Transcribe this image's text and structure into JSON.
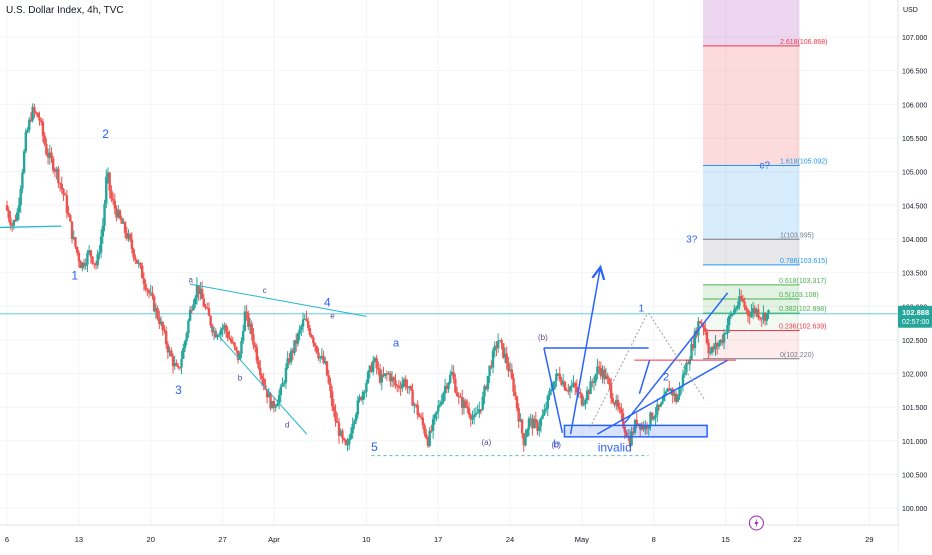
{
  "header": {
    "title": "U.S. Dollar Index, 4h, TVC"
  },
  "price_tag": {
    "price": "102.888",
    "countdown": "02:57:00"
  },
  "colors": {
    "up": "#26a69a",
    "down": "#ef5350",
    "wave": "#2962ff",
    "trend": "#22b8cf",
    "corrective": "#7e57c2",
    "fib_red": "#f23645",
    "fib_blue": "#2196f3",
    "fib_green": "#4caf50"
  },
  "chart_data": {
    "type": "candlestick",
    "title": "U.S. Dollar Index, 4h, TVC",
    "y_axis_unit": "USD",
    "ylim": [
      99.75,
      107.55
    ],
    "y_ticks": [
      "107.000",
      "106.500",
      "106.000",
      "105.500",
      "105.000",
      "104.500",
      "104.000",
      "103.500",
      "103.000",
      "102.500",
      "102.000",
      "101.500",
      "101.000",
      "100.500",
      "100.000"
    ],
    "x_ticks": [
      {
        "label": "6",
        "day": 0
      },
      {
        "label": "13",
        "day": 7
      },
      {
        "label": "20",
        "day": 14
      },
      {
        "label": "27",
        "day": 21
      },
      {
        "label": "Apr",
        "day": 26
      },
      {
        "label": "10",
        "day": 35
      },
      {
        "label": "17",
        "day": 42
      },
      {
        "label": "24",
        "day": 49
      },
      {
        "label": "May",
        "day": 56
      },
      {
        "label": "8",
        "day": 63
      },
      {
        "label": "15",
        "day": 70
      },
      {
        "label": "22",
        "day": 77
      },
      {
        "label": "29",
        "day": 84
      }
    ],
    "x_range_days": [
      0,
      86.5
    ],
    "last_day": 74.3,
    "close_price": 102.888,
    "path": [
      [
        0,
        104.5
      ],
      [
        0.7,
        104.2
      ],
      [
        1.2,
        104.4
      ],
      [
        2,
        105.5
      ],
      [
        2.6,
        105.9
      ],
      [
        3.3,
        105.8
      ],
      [
        4,
        105.3
      ],
      [
        5,
        105.0
      ],
      [
        5.8,
        104.6
      ],
      [
        6.6,
        104.0
      ],
      [
        7.4,
        103.6
      ],
      [
        8.2,
        103.8
      ],
      [
        8.9,
        103.6
      ],
      [
        9.5,
        104.2
      ],
      [
        9.9,
        105.0
      ],
      [
        10.3,
        104.6
      ],
      [
        11.1,
        104.3
      ],
      [
        12,
        104.0
      ],
      [
        13,
        103.6
      ],
      [
        14,
        103.2
      ],
      [
        15,
        102.8
      ],
      [
        16,
        102.3
      ],
      [
        16.8,
        102.0
      ],
      [
        17.4,
        102.4
      ],
      [
        18.1,
        103.0
      ],
      [
        18.7,
        103.3
      ],
      [
        19.4,
        103.0
      ],
      [
        20.4,
        102.6
      ],
      [
        21.3,
        102.7
      ],
      [
        22.2,
        102.4
      ],
      [
        22.8,
        102.2
      ],
      [
        23.3,
        102.9
      ],
      [
        24,
        102.6
      ],
      [
        24.6,
        102.2
      ],
      [
        25.3,
        101.8
      ],
      [
        26,
        101.5
      ],
      [
        26.8,
        101.7
      ],
      [
        27.6,
        102.2
      ],
      [
        28.4,
        102.5
      ],
      [
        29.1,
        102.8
      ],
      [
        29.8,
        102.6
      ],
      [
        30.5,
        102.3
      ],
      [
        31.2,
        102.1
      ],
      [
        32,
        101.4
      ],
      [
        32.8,
        101.0
      ],
      [
        33.3,
        100.85
      ],
      [
        33.8,
        101.3
      ],
      [
        34.5,
        101.6
      ],
      [
        35.2,
        101.9
      ],
      [
        35.9,
        102.2
      ],
      [
        36.6,
        101.9
      ],
      [
        37.3,
        102.0
      ],
      [
        38.1,
        101.8
      ],
      [
        38.9,
        101.9
      ],
      [
        39.7,
        101.6
      ],
      [
        40.5,
        101.3
      ],
      [
        41.2,
        101.0
      ],
      [
        42,
        101.4
      ],
      [
        42.8,
        101.8
      ],
      [
        43.5,
        102.0
      ],
      [
        44.2,
        101.6
      ],
      [
        45,
        101.5
      ],
      [
        45.7,
        101.3
      ],
      [
        46.5,
        101.6
      ],
      [
        47.2,
        102.1
      ],
      [
        48,
        102.5
      ],
      [
        48.8,
        102.2
      ],
      [
        49.5,
        101.8
      ],
      [
        50.1,
        101.3
      ],
      [
        50.5,
        101.0
      ],
      [
        51,
        101.3
      ],
      [
        51.8,
        101.2
      ],
      [
        52.5,
        101.4
      ],
      [
        53.2,
        101.8
      ],
      [
        53.9,
        102.0
      ],
      [
        54.6,
        101.8
      ],
      [
        55.4,
        101.8
      ],
      [
        56.2,
        101.6
      ],
      [
        57,
        101.8
      ],
      [
        57.8,
        102.1
      ],
      [
        58.6,
        101.9
      ],
      [
        59.3,
        101.6
      ],
      [
        60.1,
        101.3
      ],
      [
        60.8,
        101.0
      ],
      [
        61.5,
        101.3
      ],
      [
        62.3,
        101.2
      ],
      [
        63.1,
        101.4
      ],
      [
        63.9,
        101.5
      ],
      [
        64.7,
        101.8
      ],
      [
        65.4,
        101.6
      ],
      [
        66.1,
        102.0
      ],
      [
        66.9,
        102.4
      ],
      [
        67.6,
        102.8
      ],
      [
        68.1,
        102.7
      ],
      [
        68.6,
        102.3
      ],
      [
        69.2,
        102.4
      ],
      [
        69.8,
        102.5
      ],
      [
        70.5,
        102.8
      ],
      [
        71.2,
        103.0
      ],
      [
        71.7,
        103.1
      ],
      [
        72.3,
        102.9
      ],
      [
        73.1,
        102.95
      ],
      [
        73.7,
        102.85
      ],
      [
        74.3,
        102.888
      ]
    ],
    "fib_levels": [
      {
        "label": "2.618(106.868)",
        "value": 106.868,
        "color": "#f23645"
      },
      {
        "label": "1.618(105.092)",
        "value": 105.092,
        "color": "#2196f3"
      },
      {
        "label": "1(103.995)",
        "value": 103.995,
        "color": "#787b86"
      },
      {
        "label": "0.786(103.615)",
        "value": 103.615,
        "color": "#2196f3"
      },
      {
        "label": "0.618(103.317)",
        "value": 103.317,
        "color": "#4caf50"
      },
      {
        "label": "0.5(103.108)",
        "value": 103.108,
        "color": "#4caf50"
      },
      {
        "label": "0.382(102.898)",
        "value": 102.898,
        "color": "#4caf50"
      },
      {
        "label": "0.236(102.639)",
        "value": 102.639,
        "color": "#f23645"
      },
      {
        "label": "0(102.220)",
        "value": 102.22,
        "color": "#787b86"
      }
    ],
    "fib_zones": [
      {
        "from": 106.868,
        "to": 107.55,
        "color": "rgba(171,71,188,0.22)"
      },
      {
        "from": 105.092,
        "to": 106.868,
        "color": "rgba(242,54,69,0.18)"
      },
      {
        "from": 103.995,
        "to": 105.092,
        "color": "rgba(33,150,243,0.18)"
      },
      {
        "from": 103.615,
        "to": 103.995,
        "color": "rgba(120,123,134,0.18)"
      },
      {
        "from": 103.317,
        "to": 103.615,
        "color": "rgba(255,255,255,0)"
      },
      {
        "from": 102.898,
        "to": 103.317,
        "color": "rgba(76,175,80,0.16)"
      },
      {
        "from": 102.639,
        "to": 102.898,
        "color": "rgba(76,175,80,0.08)"
      },
      {
        "from": 102.22,
        "to": 102.639,
        "color": "rgba(242,54,69,0.10)"
      }
    ],
    "fib_x_days": [
      67.8,
      77.2
    ],
    "wave_labels": [
      {
        "text": "1",
        "day": 6.6,
        "price": 103.4,
        "size": 12,
        "color": "#2962ff"
      },
      {
        "text": "2",
        "day": 9.6,
        "price": 105.5,
        "size": 12,
        "color": "#2962ff"
      },
      {
        "text": "3",
        "day": 16.7,
        "price": 101.7,
        "size": 12,
        "color": "#2962ff"
      },
      {
        "text": "4",
        "day": 31.2,
        "price": 103.0,
        "size": 12,
        "color": "#2962ff"
      },
      {
        "text": "5",
        "day": 35.8,
        "price": 100.85,
        "size": 12,
        "color": "#2962ff"
      },
      {
        "text": "a",
        "day": 37.9,
        "price": 102.4,
        "size": 11,
        "color": "#2962ff"
      },
      {
        "text": "b",
        "day": 53.5,
        "price": 100.9,
        "size": 11,
        "color": "#2962ff"
      },
      {
        "text": "1",
        "day": 61.8,
        "price": 102.92,
        "size": 10,
        "color": "#2962ff"
      },
      {
        "text": "2",
        "day": 64.2,
        "price": 101.9,
        "size": 11,
        "color": "#2962ff"
      },
      {
        "text": "3?",
        "day": 66.7,
        "price": 103.95,
        "size": 10,
        "color": "#2962ff"
      },
      {
        "text": "c?",
        "day": 73.8,
        "price": 105.05,
        "size": 10,
        "color": "#2962ff"
      },
      {
        "text": "invalid",
        "day": 59.2,
        "price": 100.84,
        "size": 12,
        "color": "#2962ff"
      },
      {
        "text": "a",
        "day": 17.9,
        "price": 103.35,
        "size": 8,
        "color": "#5d4a8e"
      },
      {
        "text": "b",
        "day": 22.7,
        "price": 101.9,
        "size": 8,
        "color": "#5d4a8e"
      },
      {
        "text": "c",
        "day": 25.1,
        "price": 103.2,
        "size": 8,
        "color": "#5d4a8e"
      },
      {
        "text": "d",
        "day": 27.3,
        "price": 101.2,
        "size": 8,
        "color": "#5d4a8e"
      },
      {
        "text": "e",
        "day": 31.7,
        "price": 102.82,
        "size": 8,
        "color": "#5d4a8e"
      },
      {
        "text": "(a)",
        "day": 46.7,
        "price": 100.94,
        "size": 8,
        "color": "#5d4a8e"
      },
      {
        "text": "(b)",
        "day": 52.2,
        "price": 102.5,
        "size": 8,
        "color": "#5d4a8e"
      },
      {
        "text": "(c)",
        "day": 53.5,
        "price": 100.9,
        "size": 8,
        "color": "#5d4a8e"
      }
    ],
    "drawings": [
      {
        "type": "line",
        "from": [
          -1.0,
          104.17
        ],
        "to": [
          5.3,
          104.19
        ],
        "color": "#22b8cf",
        "width": 1.3
      },
      {
        "type": "line",
        "from": [
          17.8,
          103.33
        ],
        "to": [
          35.0,
          102.85
        ],
        "color": "#22b8cf",
        "width": 1
      },
      {
        "type": "line",
        "from": [
          19.8,
          102.7
        ],
        "to": [
          29.2,
          101.1
        ],
        "color": "#22b8cf",
        "width": 1
      },
      {
        "type": "line",
        "from": [
          35.5,
          100.78
        ],
        "to": [
          62.5,
          100.78
        ],
        "color": "#5db8c8",
        "width": 1,
        "dash": "3,3"
      },
      {
        "type": "line",
        "from": [
          52.3,
          102.38
        ],
        "to": [
          54.1,
          101.12
        ],
        "color": "#2962ff",
        "width": 1.5
      },
      {
        "type": "line",
        "from": [
          52.3,
          102.38
        ],
        "to": [
          62.5,
          102.38
        ],
        "color": "#2962ff",
        "width": 1.5
      },
      {
        "type": "rect",
        "from": [
          54.3,
          101.23
        ],
        "to": [
          68.2,
          101.06
        ],
        "color": "#2962ff",
        "fill": "rgba(41,98,255,0.18)"
      },
      {
        "type": "line",
        "from": [
          54.9,
          101.1
        ],
        "to": [
          57.8,
          103.58
        ],
        "color": "#2962ff",
        "width": 1.5,
        "arrow": true
      },
      {
        "type": "line",
        "from": [
          57.5,
          101.1
        ],
        "to": [
          70.2,
          102.2
        ],
        "color": "#2962ff",
        "width": 1.5
      },
      {
        "type": "line",
        "from": [
          60.2,
          101.27
        ],
        "to": [
          70.2,
          103.2
        ],
        "color": "#2962ff",
        "width": 1.5
      },
      {
        "type": "line",
        "from": [
          61.6,
          101.7
        ],
        "to": [
          62.6,
          102.2
        ],
        "color": "#2962ff",
        "width": 1.5
      },
      {
        "type": "line",
        "from": [
          61.1,
          102.2
        ],
        "to": [
          71.0,
          102.2
        ],
        "color": "#f23645",
        "width": 1
      },
      {
        "type": "line",
        "from": [
          56.8,
          101.2
        ],
        "to": [
          62.4,
          102.9
        ],
        "color": "#9e9e9e",
        "width": 1,
        "dash": "2,2"
      },
      {
        "type": "line",
        "from": [
          62.5,
          102.9
        ],
        "to": [
          68.0,
          101.6
        ],
        "color": "#9e9e9e",
        "width": 1,
        "dash": "2,2"
      }
    ],
    "grid": true,
    "legend": "none"
  }
}
